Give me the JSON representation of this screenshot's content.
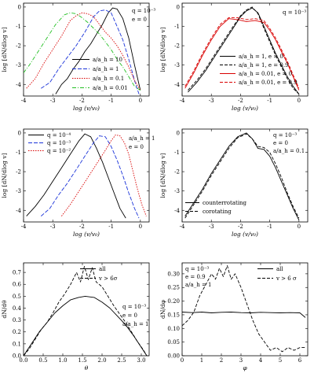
{
  "chart_data": [
    {
      "type": "line",
      "xlabel": "log (v/v₀)",
      "ylabel": "log [dN/dlog v]",
      "xlim": [
        -4,
        0.3
      ],
      "ylim": [
        -4.6,
        0.2
      ],
      "xticks": [
        "-4",
        "-3",
        "-2",
        "-1",
        "0"
      ],
      "xtick_vals": [
        -4,
        -3,
        -2,
        -1,
        0
      ],
      "yticks": [
        "0",
        "-1",
        "-2",
        "-3",
        "-4"
      ],
      "ytick_vals": [
        0,
        -1,
        -2,
        -3,
        -4
      ],
      "annotations": [
        "q = 10⁻³",
        "e = 0"
      ],
      "series": [
        {
          "name": "a/a_h = 10",
          "color": "#000000",
          "dash": "",
          "x": [
            -2.9,
            -2.7,
            -2.5,
            -2.3,
            -2.1,
            -1.9,
            -1.7,
            -1.5,
            -1.3,
            -1.1,
            -0.95,
            -0.8,
            -0.6,
            -0.4,
            -0.2,
            0.0
          ],
          "y": [
            -4.5,
            -4.0,
            -3.7,
            -3.2,
            -2.8,
            -2.3,
            -1.9,
            -1.4,
            -0.9,
            -0.3,
            -0.05,
            -0.1,
            -0.6,
            -1.6,
            -3.0,
            -4.3
          ]
        },
        {
          "name": "a/a_h = 1",
          "color": "#1a33d9",
          "dash": "5,2",
          "x": [
            -3.4,
            -3.1,
            -2.8,
            -2.5,
            -2.2,
            -1.9,
            -1.6,
            -1.4,
            -1.2,
            -1.0,
            -0.8,
            -0.6,
            -0.4,
            -0.2,
            -0.05
          ],
          "y": [
            -4.2,
            -3.9,
            -3.2,
            -2.6,
            -2.0,
            -1.3,
            -0.5,
            -0.2,
            -0.15,
            -0.3,
            -1.0,
            -1.7,
            -2.7,
            -3.8,
            -4.5
          ]
        },
        {
          "name": "a/a_h = 0.1",
          "color": "#d90000",
          "dash": "1.5,1.5",
          "x": [
            -3.9,
            -3.6,
            -3.3,
            -3.0,
            -2.7,
            -2.4,
            -2.2,
            -2.0,
            -1.8,
            -1.6,
            -1.4,
            -1.2,
            -1.0,
            -0.8,
            -0.6,
            -0.4,
            -0.2,
            0.0
          ],
          "y": [
            -4.2,
            -3.7,
            -2.9,
            -2.2,
            -1.5,
            -0.7,
            -0.45,
            -0.3,
            -0.35,
            -0.5,
            -0.9,
            -1.3,
            -1.6,
            -2.0,
            -2.5,
            -3.1,
            -3.8,
            -4.3
          ]
        },
        {
          "name": "a/a_h = 0.01",
          "color": "#22c022",
          "dash": "5,2,1,2",
          "x": [
            -4.0,
            -3.8,
            -3.5,
            -3.2,
            -2.9,
            -2.6,
            -2.4,
            -2.2,
            -2.0,
            -1.8,
            -1.6,
            -1.4,
            -1.2,
            -1.0,
            -0.8,
            -0.6,
            -0.4,
            -0.2,
            0.0
          ],
          "y": [
            -3.4,
            -3.0,
            -2.3,
            -1.6,
            -0.9,
            -0.4,
            -0.3,
            -0.35,
            -0.55,
            -0.8,
            -1.1,
            -1.4,
            -1.8,
            -2.2,
            -2.7,
            -3.1,
            -3.6,
            -4.1,
            -4.3
          ]
        }
      ]
    },
    {
      "type": "line",
      "xlabel": "log (v/v₀)",
      "ylabel": "log [dN/dlog v]",
      "xlim": [
        -4,
        0.3
      ],
      "ylim": [
        -4.6,
        0.2
      ],
      "xticks": [
        "-4",
        "-3",
        "-2",
        "-1",
        "0"
      ],
      "xtick_vals": [
        -4,
        -3,
        -2,
        -1,
        0
      ],
      "yticks": [
        "0",
        "-1",
        "-2",
        "-3",
        "-4"
      ],
      "ytick_vals": [
        0,
        -1,
        -2,
        -3,
        -4
      ],
      "annotations": [
        "q = 10⁻³"
      ],
      "series": [
        {
          "name": "a/a_h = 1, e = 0",
          "color": "#000000",
          "dash": "",
          "x": [
            -3.8,
            -3.5,
            -3.2,
            -2.9,
            -2.6,
            -2.3,
            -2.0,
            -1.8,
            -1.6,
            -1.4,
            -1.2,
            -1.0,
            -0.8,
            -0.6,
            -0.4,
            -0.2,
            0.0
          ],
          "y": [
            -4.4,
            -3.9,
            -3.3,
            -2.6,
            -1.9,
            -1.2,
            -0.5,
            -0.2,
            -0.05,
            -0.3,
            -1.0,
            -1.7,
            -2.4,
            -3.0,
            -3.6,
            -4.1,
            -4.5
          ]
        },
        {
          "name": "a/a_h = 1, e = 0.9",
          "color": "#000000",
          "dash": "4,2",
          "x": [
            -3.8,
            -3.5,
            -3.2,
            -2.9,
            -2.6,
            -2.3,
            -2.0,
            -1.8,
            -1.6,
            -1.4,
            -1.2,
            -1.0,
            -0.8,
            -0.6,
            -0.4,
            -0.2,
            0.0
          ],
          "y": [
            -4.3,
            -3.8,
            -3.2,
            -2.5,
            -1.8,
            -1.1,
            -0.45,
            -0.15,
            0.0,
            -0.35,
            -1.1,
            -1.8,
            -2.5,
            -3.1,
            -3.7,
            -4.2,
            -4.5
          ]
        },
        {
          "name": "a/a_h = 0.01, e = 0",
          "color": "#d90000",
          "dash": "",
          "x": [
            -3.9,
            -3.6,
            -3.3,
            -3.0,
            -2.7,
            -2.4,
            -2.1,
            -1.8,
            -1.5,
            -1.2,
            -1.0,
            -0.8,
            -0.6,
            -0.4,
            -0.2,
            0.0
          ],
          "y": [
            -4.2,
            -3.4,
            -2.5,
            -1.7,
            -1.0,
            -0.6,
            -0.65,
            -0.75,
            -0.7,
            -0.8,
            -1.2,
            -1.7,
            -2.3,
            -2.9,
            -3.6,
            -4.3
          ]
        },
        {
          "name": "a/a_h = 0.01, e = 0.9",
          "color": "#d90000",
          "dash": "4,2",
          "x": [
            -3.9,
            -3.6,
            -3.3,
            -3.0,
            -2.7,
            -2.4,
            -2.1,
            -1.8,
            -1.5,
            -1.2,
            -1.0,
            -0.8,
            -0.6,
            -0.4,
            -0.2,
            0.0
          ],
          "y": [
            -4.1,
            -3.3,
            -2.4,
            -1.6,
            -0.9,
            -0.55,
            -0.55,
            -0.65,
            -0.6,
            -0.7,
            -1.1,
            -1.6,
            -2.2,
            -2.8,
            -3.5,
            -4.2
          ]
        }
      ]
    },
    {
      "type": "line",
      "xlabel": "log (v/v₀)",
      "ylabel": "log [dN/dlog v]",
      "xlim": [
        -4,
        0.3
      ],
      "ylim": [
        -4.6,
        0.2
      ],
      "xticks": [
        "-4",
        "-3",
        "-2",
        "-1",
        "0"
      ],
      "xtick_vals": [
        -4,
        -3,
        -2,
        -1,
        0
      ],
      "yticks": [
        "0",
        "-1",
        "-2",
        "-3",
        "-4"
      ],
      "ytick_vals": [
        0,
        -1,
        -2,
        -3,
        -4
      ],
      "annotations": [
        "a/a_h = 1",
        "e = 0"
      ],
      "series": [
        {
          "name": "q = 10⁻⁴",
          "color": "#000000",
          "dash": "",
          "x": [
            -3.9,
            -3.6,
            -3.3,
            -3.0,
            -2.7,
            -2.4,
            -2.1,
            -1.9,
            -1.7,
            -1.5,
            -1.3,
            -1.1,
            -0.9,
            -0.7,
            -0.5
          ],
          "y": [
            -4.3,
            -3.8,
            -3.2,
            -2.5,
            -1.8,
            -1.1,
            -0.4,
            -0.05,
            -0.2,
            -0.8,
            -1.5,
            -2.3,
            -3.1,
            -3.9,
            -4.4
          ]
        },
        {
          "name": "q = 10⁻³",
          "color": "#1a33d9",
          "dash": "5,2",
          "x": [
            -3.4,
            -3.1,
            -2.8,
            -2.5,
            -2.2,
            -1.9,
            -1.6,
            -1.4,
            -1.2,
            -1.0,
            -0.8,
            -0.6,
            -0.4,
            -0.2,
            -0.05
          ],
          "y": [
            -4.3,
            -3.9,
            -3.2,
            -2.6,
            -1.9,
            -1.2,
            -0.5,
            -0.15,
            -0.2,
            -0.7,
            -1.4,
            -2.2,
            -3.1,
            -3.9,
            -4.4
          ]
        },
        {
          "name": "q = 10⁻²",
          "color": "#d90000",
          "dash": "1.5,1.5",
          "x": [
            -2.7,
            -2.4,
            -2.1,
            -1.8,
            -1.5,
            -1.2,
            -1.0,
            -0.85,
            -0.7,
            -0.55,
            -0.4,
            -0.25,
            -0.1,
            0.05,
            0.2
          ],
          "y": [
            -4.3,
            -3.7,
            -3.0,
            -2.3,
            -1.6,
            -0.9,
            -0.4,
            -0.1,
            -0.15,
            -0.5,
            -1.1,
            -2.0,
            -2.9,
            -3.7,
            -4.3
          ]
        }
      ]
    },
    {
      "type": "line",
      "xlabel": "log (v/v₀)",
      "ylabel": "log [dN/dlog v]",
      "xlim": [
        -4,
        0.3
      ],
      "ylim": [
        -4.6,
        0.2
      ],
      "xticks": [
        "-4",
        "-3",
        "-2",
        "-1",
        "0"
      ],
      "xtick_vals": [
        -4,
        -3,
        -2,
        -1,
        0
      ],
      "yticks": [
        "0",
        "-1",
        "-2",
        "-3",
        "-4"
      ],
      "ytick_vals": [
        0,
        -1,
        -2,
        -3,
        -4
      ],
      "annotations": [
        "q = 10⁻³",
        "e = 0",
        "a/a_h = 0.1"
      ],
      "series": [
        {
          "name": "counterrotating",
          "color": "#000000",
          "dash": "",
          "x": [
            -3.9,
            -3.6,
            -3.3,
            -3.0,
            -2.7,
            -2.4,
            -2.1,
            -1.8,
            -1.6,
            -1.4,
            -1.2,
            -1.0,
            -0.8,
            -0.6,
            -0.4,
            -0.2,
            0.0
          ],
          "y": [
            -4.3,
            -3.6,
            -2.9,
            -2.1,
            -1.4,
            -0.7,
            -0.2,
            0.0,
            -0.3,
            -0.8,
            -0.85,
            -1.2,
            -1.8,
            -2.5,
            -3.2,
            -3.9,
            -4.5
          ]
        },
        {
          "name": "corotating",
          "color": "#000000",
          "dash": "4,2",
          "x": [
            -3.9,
            -3.6,
            -3.3,
            -3.0,
            -2.7,
            -2.4,
            -2.1,
            -1.8,
            -1.6,
            -1.4,
            -1.2,
            -1.0,
            -0.8,
            -0.6,
            -0.4,
            -0.2,
            0.0
          ],
          "y": [
            -4.4,
            -3.7,
            -3.0,
            -2.2,
            -1.5,
            -0.8,
            -0.25,
            -0.05,
            -0.3,
            -0.7,
            -0.75,
            -1.0,
            -1.6,
            -2.3,
            -3.1,
            -3.8,
            -4.4
          ]
        }
      ]
    },
    {
      "type": "line",
      "xlabel": "θ",
      "ylabel": "dN/dθ",
      "xlim": [
        0,
        3.2
      ],
      "ylim": [
        0,
        0.78
      ],
      "xticks": [
        "0.0",
        "0.5",
        "1.0",
        "1.5",
        "2.0",
        "2.5",
        "3.0"
      ],
      "xtick_vals": [
        0,
        0.5,
        1.0,
        1.5,
        2.0,
        2.5,
        3.0
      ],
      "yticks": [
        "0.0",
        "0.1",
        "0.2",
        "0.3",
        "0.4",
        "0.5",
        "0.6",
        "0.7"
      ],
      "ytick_vals": [
        0,
        0.1,
        0.2,
        0.3,
        0.4,
        0.5,
        0.6,
        0.7
      ],
      "annotations": [
        "q = 10⁻³",
        "e = 0",
        "a/a_h = 1"
      ],
      "series": [
        {
          "name": "all",
          "color": "#000000",
          "dash": "",
          "x": [
            0.0,
            0.2,
            0.4,
            0.6,
            0.8,
            1.0,
            1.2,
            1.4,
            1.57,
            1.8,
            2.0,
            2.2,
            2.4,
            2.6,
            2.8,
            3.0,
            3.14
          ],
          "y": [
            0.0,
            0.1,
            0.2,
            0.28,
            0.36,
            0.42,
            0.47,
            0.49,
            0.5,
            0.49,
            0.45,
            0.4,
            0.33,
            0.26,
            0.17,
            0.07,
            0.0
          ]
        },
        {
          "name": "v > 6σ",
          "color": "#000000",
          "dash": "4,2",
          "x": [
            0.0,
            0.15,
            0.3,
            0.45,
            0.6,
            0.75,
            0.9,
            1.05,
            1.2,
            1.35,
            1.45,
            1.55,
            1.65,
            1.75,
            1.85,
            2.0,
            2.15,
            2.3,
            2.45,
            2.6,
            2.75,
            2.9,
            3.05,
            3.14
          ],
          "y": [
            0.0,
            0.06,
            0.14,
            0.22,
            0.28,
            0.36,
            0.45,
            0.52,
            0.6,
            0.7,
            0.62,
            0.75,
            0.64,
            0.74,
            0.62,
            0.58,
            0.5,
            0.42,
            0.35,
            0.28,
            0.2,
            0.12,
            0.05,
            0.0
          ]
        }
      ]
    },
    {
      "type": "line",
      "xlabel": "φ",
      "ylabel": "dN/dφ",
      "xlim": [
        0,
        6.4
      ],
      "ylim": [
        0,
        0.34
      ],
      "xticks": [
        "0",
        "1",
        "2",
        "3",
        "4",
        "5",
        "6"
      ],
      "xtick_vals": [
        0,
        1,
        2,
        3,
        4,
        5,
        6
      ],
      "yticks": [
        "0.00",
        "0.05",
        "0.10",
        "0.15",
        "0.20",
        "0.25",
        "0.30"
      ],
      "ytick_vals": [
        0,
        0.05,
        0.1,
        0.15,
        0.2,
        0.25,
        0.3
      ],
      "annotations": [
        "q = 10⁻³",
        "e = 0.9",
        "a/a_h = 1"
      ],
      "series": [
        {
          "name": "all",
          "color": "#000000",
          "dash": "",
          "x": [
            0.0,
            0.5,
            1.0,
            1.5,
            2.0,
            2.5,
            3.0,
            3.5,
            4.0,
            4.5,
            5.0,
            5.5,
            6.0,
            6.28
          ],
          "y": [
            0.16,
            0.158,
            0.16,
            0.157,
            0.159,
            0.16,
            0.158,
            0.157,
            0.159,
            0.158,
            0.157,
            0.158,
            0.157,
            0.14
          ]
        },
        {
          "name": "v > 6 σ",
          "color": "#000000",
          "dash": "4,2",
          "x": [
            0.0,
            0.3,
            0.6,
            0.9,
            1.2,
            1.5,
            1.7,
            1.9,
            2.1,
            2.3,
            2.5,
            2.7,
            3.0,
            3.3,
            3.6,
            3.9,
            4.2,
            4.5,
            4.8,
            5.1,
            5.4,
            5.7,
            6.0,
            6.28
          ],
          "y": [
            0.11,
            0.13,
            0.16,
            0.22,
            0.26,
            0.3,
            0.28,
            0.32,
            0.29,
            0.33,
            0.28,
            0.3,
            0.25,
            0.19,
            0.13,
            0.08,
            0.05,
            0.02,
            0.03,
            0.015,
            0.03,
            0.02,
            0.03,
            0.03
          ]
        }
      ]
    }
  ]
}
